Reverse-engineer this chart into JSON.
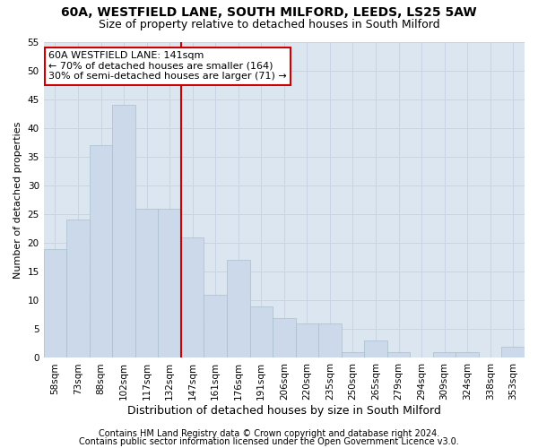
{
  "title1": "60A, WESTFIELD LANE, SOUTH MILFORD, LEEDS, LS25 5AW",
  "title2": "Size of property relative to detached houses in South Milford",
  "xlabel": "Distribution of detached houses by size in South Milford",
  "ylabel": "Number of detached properties",
  "categories": [
    "58sqm",
    "73sqm",
    "88sqm",
    "102sqm",
    "117sqm",
    "132sqm",
    "147sqm",
    "161sqm",
    "176sqm",
    "191sqm",
    "206sqm",
    "220sqm",
    "235sqm",
    "250sqm",
    "265sqm",
    "279sqm",
    "294sqm",
    "309sqm",
    "324sqm",
    "338sqm",
    "353sqm"
  ],
  "values": [
    19,
    24,
    37,
    44,
    26,
    26,
    21,
    11,
    17,
    9,
    7,
    6,
    6,
    1,
    3,
    1,
    0,
    1,
    1,
    0,
    2
  ],
  "bar_color": "#ccd9ea",
  "bar_edge_color": "#a8becc",
  "vline_color": "#cc0000",
  "annotation_text": "60A WESTFIELD LANE: 141sqm\n← 70% of detached houses are smaller (164)\n30% of semi-detached houses are larger (71) →",
  "annotation_box_color": "#ffffff",
  "annotation_box_edge": "#cc0000",
  "ylim": [
    0,
    55
  ],
  "yticks": [
    0,
    5,
    10,
    15,
    20,
    25,
    30,
    35,
    40,
    45,
    50,
    55
  ],
  "grid_color": "#c8d4e4",
  "bg_color": "#dce6f0",
  "footer1": "Contains HM Land Registry data © Crown copyright and database right 2024.",
  "footer2": "Contains public sector information licensed under the Open Government Licence v3.0.",
  "title1_fontsize": 10,
  "title2_fontsize": 9,
  "xlabel_fontsize": 9,
  "ylabel_fontsize": 8,
  "tick_fontsize": 7.5,
  "annotation_fontsize": 8,
  "footer_fontsize": 7
}
